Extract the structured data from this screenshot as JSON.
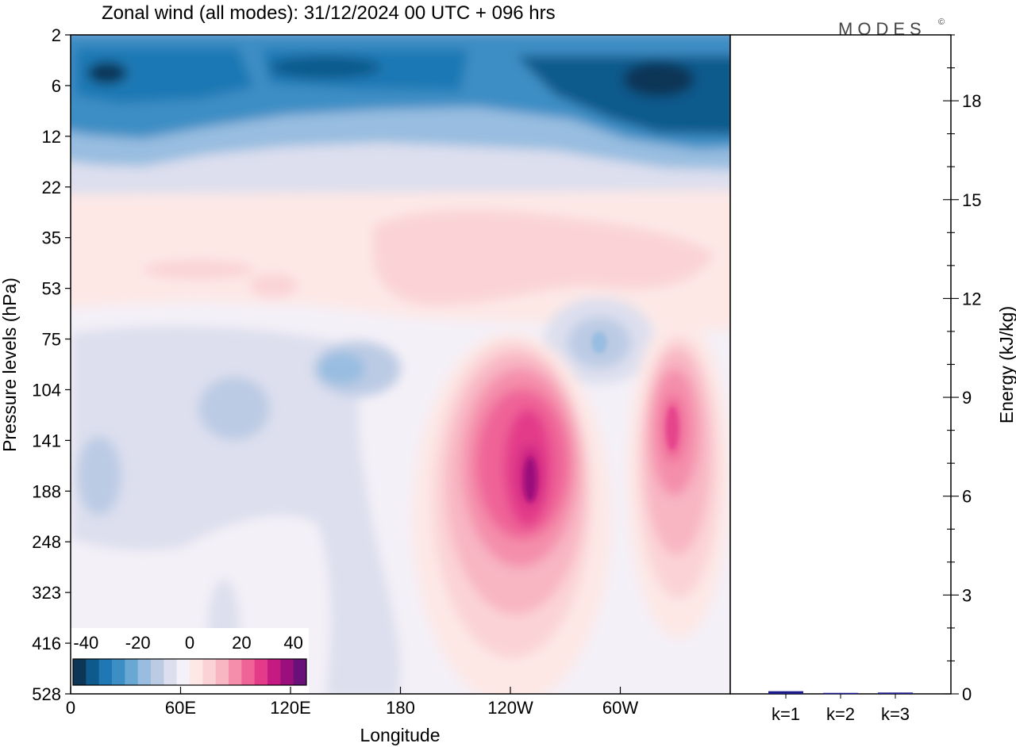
{
  "figure": {
    "title": "Zonal wind (all modes):  31/12/2024  00 UTC  + 096 hrs",
    "brand": "MODES",
    "brand_mark": "©"
  },
  "chart_data": [
    {
      "type": "heatmap",
      "title": "Zonal wind (all modes):  31/12/2024  00 UTC  + 096 hrs",
      "xlabel": "Longitude",
      "ylabel": "Pressure levels (hPa)",
      "x_ticks": [
        "0",
        "60E",
        "120E",
        "180",
        "120W",
        "60W"
      ],
      "y_ticks": [
        "2",
        "6",
        "12",
        "22",
        "35",
        "53",
        "75",
        "104",
        "141",
        "188",
        "248",
        "323",
        "416",
        "528"
      ],
      "colorbar": {
        "tick_labels": [
          "-40",
          "-20",
          "0",
          "20",
          "40"
        ],
        "range": [
          -45,
          45
        ],
        "step": 5,
        "colors": [
          "#0c3556",
          "#0f5a8c",
          "#1f78b4",
          "#3d8ec5",
          "#6aa8d4",
          "#98bde0",
          "#bccbe4",
          "#dddfee",
          "#f4f2f8",
          "#fde8e6",
          "#fbd3d6",
          "#f8b5c2",
          "#f48eab",
          "#ef6397",
          "#e33b8a",
          "#c41a82",
          "#9b0f7c",
          "#6a1079"
        ]
      },
      "features": [
        {
          "kind": "easterly jet core",
          "lon_range": [
            0,
            360
          ],
          "pressure_hPa": 6,
          "value_min": -40
        },
        {
          "kind": "westerly core",
          "lon_center": 243,
          "pressure_hPa": 170,
          "value_max": 40
        },
        {
          "kind": "westerly core",
          "lon_center": 327,
          "pressure_hPa": 125,
          "value_max": 30
        },
        {
          "kind": "easterly patch",
          "lon_center": 282,
          "pressure_hPa": 78,
          "value_min": -15
        },
        {
          "kind": "easterly patch",
          "lon_center": 150,
          "pressure_hPa": 90,
          "value_min": -15
        }
      ]
    },
    {
      "type": "bar",
      "ylabel": "Energy (kJ/kg)",
      "ylim": [
        0,
        20
      ],
      "yticks": [
        "0",
        "3",
        "6",
        "9",
        "12",
        "15",
        "18"
      ],
      "categories": [
        "k=1",
        "k=2",
        "k=3"
      ],
      "values": [
        0.08,
        0.03,
        0.04
      ],
      "bar_color": "#1a1a8c"
    }
  ]
}
